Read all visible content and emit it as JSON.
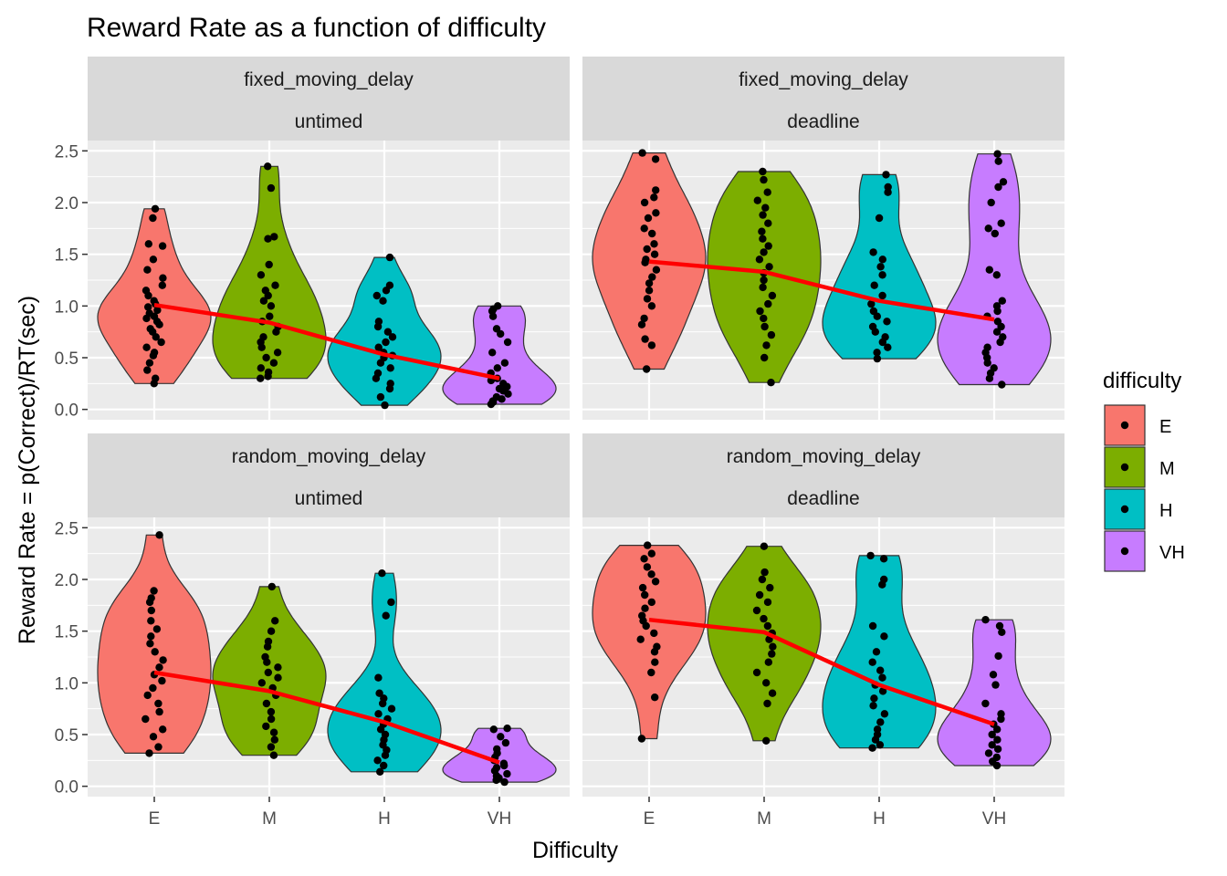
{
  "chart_data": {
    "type": "violin",
    "title": "Reward Rate as a function of difficulty",
    "xlabel": "Difficulty",
    "ylabel": "Reward Rate = p(Correct)/RT(sec)",
    "categories": [
      "E",
      "M",
      "H",
      "VH"
    ],
    "ylim": [
      -0.1,
      2.6
    ],
    "yticks": [
      0.0,
      0.5,
      1.0,
      1.5,
      2.0,
      2.5
    ],
    "ytick_labels": [
      "0.0",
      "0.5",
      "1.0",
      "1.5",
      "2.0",
      "2.5"
    ],
    "grid": true,
    "legend": {
      "title": "difficulty",
      "placement": "right",
      "entries": [
        {
          "label": "E",
          "color": "#F8766D"
        },
        {
          "label": "M",
          "color": "#7CAE00"
        },
        {
          "label": "H",
          "color": "#00BFC4"
        },
        {
          "label": "VH",
          "color": "#C77CFF"
        }
      ]
    },
    "mean_line_color": "#FF0000",
    "panels": [
      {
        "strip_top": "fixed_moving_delay",
        "strip_bottom": "untimed",
        "means": [
          1.01,
          0.84,
          0.53,
          0.3
        ],
        "groups": [
          {
            "min": 0.25,
            "max": 1.94,
            "points": [
              0.25,
              0.3,
              0.38,
              0.45,
              0.52,
              0.55,
              0.6,
              0.65,
              0.7,
              0.75,
              0.78,
              0.82,
              0.85,
              0.88,
              0.9,
              0.93,
              0.96,
              0.99,
              1.02,
              1.05,
              1.1,
              1.15,
              1.2,
              1.27,
              1.35,
              1.45,
              1.58,
              1.6,
              1.85,
              1.94
            ]
          },
          {
            "min": 0.3,
            "max": 2.35,
            "points": [
              0.3,
              0.32,
              0.36,
              0.4,
              0.45,
              0.5,
              0.55,
              0.6,
              0.65,
              0.7,
              0.75,
              0.8,
              0.85,
              0.9,
              1.0,
              1.05,
              1.1,
              1.15,
              1.2,
              1.3,
              1.4,
              1.65,
              1.67,
              2.14,
              2.35
            ]
          },
          {
            "min": 0.04,
            "max": 1.47,
            "points": [
              0.04,
              0.12,
              0.2,
              0.25,
              0.3,
              0.35,
              0.4,
              0.45,
              0.5,
              0.52,
              0.55,
              0.6,
              0.65,
              0.7,
              0.75,
              0.8,
              0.85,
              1.05,
              1.1,
              1.15,
              1.2,
              1.47
            ]
          },
          {
            "min": 0.05,
            "max": 1.0,
            "points": [
              0.05,
              0.07,
              0.08,
              0.1,
              0.12,
              0.15,
              0.18,
              0.2,
              0.22,
              0.25,
              0.28,
              0.3,
              0.35,
              0.4,
              0.45,
              0.55,
              0.65,
              0.73,
              0.78,
              0.9,
              0.95,
              0.97,
              1.0
            ]
          }
        ]
      },
      {
        "strip_top": "fixed_moving_delay",
        "strip_bottom": "deadline",
        "means": [
          1.43,
          1.33,
          1.05,
          0.87
        ],
        "groups": [
          {
            "min": 0.39,
            "max": 2.48,
            "points": [
              0.39,
              0.62,
              0.68,
              0.82,
              0.88,
              1.0,
              1.07,
              1.15,
              1.22,
              1.28,
              1.35,
              1.42,
              1.45,
              1.5,
              1.55,
              1.6,
              1.7,
              1.75,
              1.85,
              1.9,
              2.0,
              2.05,
              2.12,
              2.42,
              2.48
            ]
          },
          {
            "min": 0.26,
            "max": 2.3,
            "points": [
              0.26,
              0.5,
              0.62,
              0.72,
              0.8,
              0.88,
              0.95,
              1.02,
              1.1,
              1.18,
              1.25,
              1.32,
              1.38,
              1.45,
              1.52,
              1.58,
              1.65,
              1.72,
              1.8,
              1.88,
              1.95,
              2.02,
              2.1,
              2.22,
              2.3
            ]
          },
          {
            "min": 0.49,
            "max": 2.27,
            "points": [
              0.49,
              0.55,
              0.6,
              0.65,
              0.7,
              0.75,
              0.8,
              0.85,
              0.9,
              0.95,
              1.02,
              1.1,
              1.2,
              1.3,
              1.38,
              1.45,
              1.52,
              1.85,
              2.1,
              2.15,
              2.27
            ]
          },
          {
            "min": 0.24,
            "max": 2.47,
            "points": [
              0.24,
              0.3,
              0.35,
              0.4,
              0.45,
              0.5,
              0.55,
              0.6,
              0.65,
              0.7,
              0.75,
              0.8,
              0.85,
              0.9,
              0.95,
              1.0,
              1.05,
              1.3,
              1.35,
              1.7,
              1.75,
              1.8,
              2.0,
              2.15,
              2.2,
              2.4,
              2.47
            ]
          }
        ]
      },
      {
        "strip_top": "random_moving_delay",
        "strip_bottom": "untimed",
        "means": [
          1.1,
          0.92,
          0.62,
          0.23
        ],
        "groups": [
          {
            "min": 0.32,
            "max": 2.43,
            "points": [
              0.32,
              0.38,
              0.48,
              0.55,
              0.65,
              0.72,
              0.8,
              0.88,
              0.95,
              1.02,
              1.08,
              1.15,
              1.22,
              1.3,
              1.38,
              1.45,
              1.52,
              1.6,
              1.7,
              1.78,
              1.82,
              1.89,
              2.43
            ]
          },
          {
            "min": 0.3,
            "max": 1.93,
            "points": [
              0.3,
              0.38,
              0.45,
              0.52,
              0.58,
              0.65,
              0.72,
              0.8,
              0.88,
              0.95,
              1.0,
              1.05,
              1.1,
              1.15,
              1.2,
              1.25,
              1.35,
              1.4,
              1.5,
              1.6,
              1.93
            ]
          },
          {
            "min": 0.14,
            "max": 2.06,
            "points": [
              0.14,
              0.2,
              0.25,
              0.3,
              0.35,
              0.4,
              0.45,
              0.5,
              0.55,
              0.6,
              0.65,
              0.7,
              0.75,
              0.8,
              0.85,
              0.9,
              1.05,
              1.65,
              1.78,
              2.06
            ]
          },
          {
            "min": 0.04,
            "max": 0.56,
            "points": [
              0.04,
              0.06,
              0.08,
              0.1,
              0.12,
              0.15,
              0.18,
              0.2,
              0.22,
              0.25,
              0.28,
              0.32,
              0.36,
              0.42,
              0.48,
              0.55,
              0.56
            ]
          }
        ]
      },
      {
        "strip_top": "random_moving_delay",
        "strip_bottom": "deadline",
        "means": [
          1.61,
          1.49,
          0.98,
          0.6
        ],
        "groups": [
          {
            "min": 0.46,
            "max": 2.33,
            "points": [
              0.46,
              0.86,
              1.1,
              1.2,
              1.3,
              1.35,
              1.42,
              1.48,
              1.55,
              1.6,
              1.65,
              1.72,
              1.78,
              1.85,
              1.92,
              1.98,
              2.05,
              2.12,
              2.2,
              2.25,
              2.33
            ]
          },
          {
            "min": 0.44,
            "max": 2.32,
            "points": [
              0.44,
              0.8,
              0.9,
              1.0,
              1.1,
              1.2,
              1.28,
              1.35,
              1.42,
              1.48,
              1.55,
              1.62,
              1.7,
              1.78,
              1.85,
              1.92,
              2.0,
              2.07,
              2.32
            ]
          },
          {
            "min": 0.37,
            "max": 2.23,
            "points": [
              0.37,
              0.4,
              0.45,
              0.5,
              0.55,
              0.62,
              0.7,
              0.78,
              0.85,
              0.92,
              0.98,
              1.05,
              1.12,
              1.2,
              1.3,
              1.45,
              1.55,
              1.95,
              2.0,
              2.2,
              2.23
            ]
          },
          {
            "min": 0.2,
            "max": 1.61,
            "points": [
              0.2,
              0.24,
              0.28,
              0.32,
              0.36,
              0.4,
              0.45,
              0.5,
              0.55,
              0.6,
              0.65,
              0.7,
              0.8,
              0.98,
              1.08,
              1.26,
              1.49,
              1.55,
              1.61
            ]
          }
        ]
      }
    ]
  }
}
